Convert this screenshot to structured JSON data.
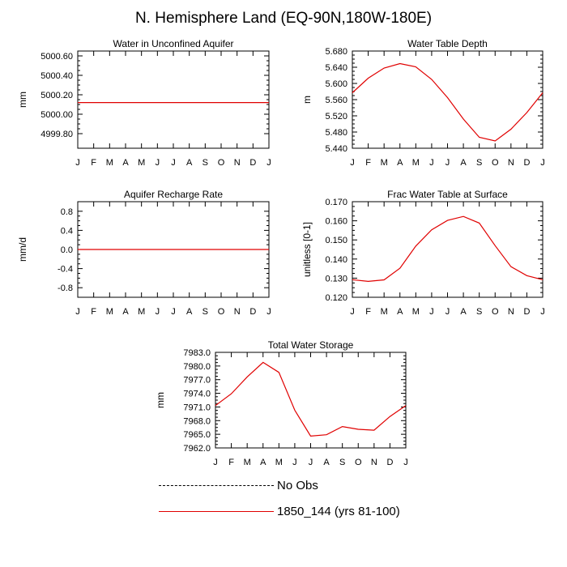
{
  "title": "N. Hemisphere Land (EQ-90N,180W-180E)",
  "colors": {
    "model": "#e00000",
    "obs": "#000000",
    "axis": "#000000"
  },
  "legend": {
    "obs_label": "No Obs",
    "model_label": "1850_144 (yrs 81-100)"
  },
  "chart_data": [
    {
      "type": "line",
      "title": "Water in Unconfined Aquifer",
      "ylabel": "mm",
      "xlabel": "",
      "categories": [
        "J",
        "F",
        "M",
        "A",
        "M",
        "J",
        "J",
        "A",
        "S",
        "O",
        "N",
        "D",
        "J"
      ],
      "ylim": [
        4999.65,
        5000.65
      ],
      "yticks": [
        4999.8,
        5000.0,
        5000.2,
        5000.4,
        5000.6
      ],
      "ytick_labels": [
        "4999.80",
        "5000.00",
        "5000.20",
        "5000.40",
        "5000.60"
      ],
      "series": [
        {
          "name": "1850_144 (yrs 81-100)",
          "values": [
            5000.12,
            5000.12,
            5000.12,
            5000.12,
            5000.12,
            5000.12,
            5000.12,
            5000.12,
            5000.12,
            5000.12,
            5000.12,
            5000.12,
            5000.12
          ]
        }
      ]
    },
    {
      "type": "line",
      "title": "Water Table Depth",
      "ylabel": "m",
      "xlabel": "",
      "categories": [
        "J",
        "F",
        "M",
        "A",
        "M",
        "J",
        "J",
        "A",
        "S",
        "O",
        "N",
        "D",
        "J"
      ],
      "ylim": [
        5.44,
        5.68
      ],
      "yticks": [
        5.44,
        5.48,
        5.52,
        5.56,
        5.6,
        5.64,
        5.68
      ],
      "ytick_labels": [
        "5.440",
        "5.480",
        "5.520",
        "5.560",
        "5.600",
        "5.640",
        "5.680"
      ],
      "series": [
        {
          "name": "1850_144 (yrs 81-100)",
          "values": [
            5.577,
            5.613,
            5.638,
            5.649,
            5.641,
            5.61,
            5.565,
            5.512,
            5.467,
            5.458,
            5.487,
            5.528,
            5.577
          ]
        }
      ]
    },
    {
      "type": "line",
      "title": "Aquifer Recharge Rate",
      "ylabel": "mm/d",
      "xlabel": "",
      "categories": [
        "J",
        "F",
        "M",
        "A",
        "M",
        "J",
        "J",
        "A",
        "S",
        "O",
        "N",
        "D",
        "J"
      ],
      "ylim": [
        -1.0,
        1.0
      ],
      "yticks": [
        -0.8,
        -0.4,
        0.0,
        0.4,
        0.8
      ],
      "ytick_labels": [
        "-0.8",
        "-0.4",
        "0.0",
        "0.4",
        "0.8"
      ],
      "series": [
        {
          "name": "1850_144 (yrs 81-100)",
          "values": [
            0,
            0,
            0,
            0,
            0,
            0,
            0,
            0,
            0,
            0,
            0,
            0,
            0
          ]
        }
      ]
    },
    {
      "type": "line",
      "title": "Frac Water Table at Surface",
      "ylabel": "unitless [0-1]",
      "xlabel": "",
      "categories": [
        "J",
        "F",
        "M",
        "A",
        "M",
        "J",
        "J",
        "A",
        "S",
        "O",
        "N",
        "D",
        "J"
      ],
      "ylim": [
        0.12,
        0.17
      ],
      "yticks": [
        0.12,
        0.13,
        0.14,
        0.15,
        0.16,
        0.17
      ],
      "ytick_labels": [
        "0.120",
        "0.130",
        "0.140",
        "0.150",
        "0.160",
        "0.170"
      ],
      "series": [
        {
          "name": "1850_144 (yrs 81-100)",
          "values": [
            0.1292,
            0.1283,
            0.1291,
            0.1352,
            0.1468,
            0.1553,
            0.1602,
            0.1623,
            0.1588,
            0.147,
            0.136,
            0.1313,
            0.1292
          ]
        }
      ]
    },
    {
      "type": "line",
      "title": "Total Water Storage",
      "ylabel": "mm",
      "xlabel": "",
      "categories": [
        "J",
        "F",
        "M",
        "A",
        "M",
        "J",
        "J",
        "A",
        "S",
        "O",
        "N",
        "D",
        "J"
      ],
      "ylim": [
        7962.0,
        7983.0
      ],
      "yticks": [
        7962.0,
        7965.0,
        7968.0,
        7971.0,
        7974.0,
        7977.0,
        7980.0,
        7983.0
      ],
      "ytick_labels": [
        "7962.0",
        "7965.0",
        "7968.0",
        "7971.0",
        "7974.0",
        "7977.0",
        "7980.0",
        "7983.0"
      ],
      "series": [
        {
          "name": "1850_144 (yrs 81-100)",
          "values": [
            7971.3,
            7973.9,
            7977.6,
            7980.8,
            7978.6,
            7970.3,
            7964.6,
            7964.9,
            7966.7,
            7966.1,
            7965.9,
            7968.9,
            7971.3
          ]
        }
      ]
    }
  ]
}
